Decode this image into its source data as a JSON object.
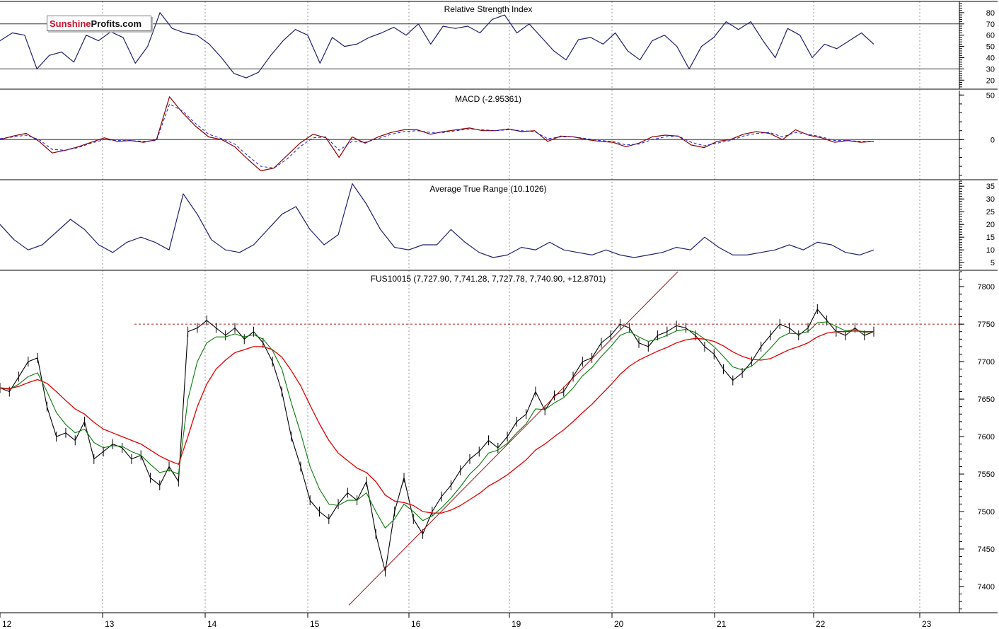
{
  "logo": {
    "part1": "Sunshine",
    "part2": "Profits.com"
  },
  "colors": {
    "rsi": "#1f1f6e",
    "macd": "#8b0000",
    "signal": "#1a1acc",
    "atr": "#1f1f6e",
    "price": "#000000",
    "ma_short": "#0a7a0a",
    "ma_long": "#dd0000",
    "trend": "#a01010",
    "level": "#b22222",
    "grid": "#9a9a9a"
  },
  "x_axis": {
    "labels": [
      "12",
      "13",
      "14",
      "15",
      "16",
      "19",
      "20",
      "21",
      "22",
      "23"
    ]
  },
  "chart_data": [
    {
      "type": "line",
      "title": "Relative Strength Index",
      "ylim": [
        12,
        90
      ],
      "yticks": [
        20,
        30,
        40,
        50,
        60,
        70,
        80
      ],
      "reference_lines": [
        30,
        70
      ],
      "series": [
        {
          "values": [
            55,
            62,
            60,
            30,
            42,
            45,
            36,
            60,
            55,
            63,
            58,
            35,
            50,
            80,
            66,
            62,
            60,
            52,
            40,
            26,
            22,
            27,
            42,
            55,
            65,
            60,
            35,
            58,
            50,
            52,
            58,
            62,
            67,
            60,
            70,
            52,
            68,
            66,
            68,
            62,
            74,
            78,
            62,
            70,
            58,
            46,
            38,
            56,
            58,
            52,
            62,
            46,
            38,
            55,
            60,
            50,
            30,
            50,
            58,
            72,
            65,
            72,
            55,
            40,
            66,
            60,
            40,
            52,
            48,
            55,
            62,
            52
          ]
        }
      ]
    },
    {
      "type": "line",
      "title": "MACD (-2.95361)",
      "ylim": [
        -45,
        55
      ],
      "yticks": [
        0,
        50
      ],
      "reference_lines": [
        0
      ],
      "series": [
        {
          "values": [
            0,
            4,
            7,
            -2,
            -15,
            -12,
            -8,
            -3,
            2,
            -2,
            -1,
            -3,
            0,
            48,
            30,
            15,
            3,
            0,
            -8,
            -22,
            -35,
            -32,
            -18,
            -4,
            6,
            2,
            -20,
            3,
            -4,
            3,
            8,
            11,
            11,
            6,
            9,
            11,
            13,
            10,
            10,
            12,
            9,
            10,
            -2,
            4,
            3,
            0,
            -2,
            -3,
            -8,
            -4,
            3,
            5,
            4,
            -6,
            -9,
            -2,
            0,
            6,
            9,
            7,
            0,
            11,
            5,
            2,
            -3,
            -1,
            -3,
            -2
          ]
        },
        {
          "values": [
            1,
            3,
            5,
            0,
            -11,
            -12,
            -9,
            -4,
            0,
            -1,
            -1,
            -2,
            -1,
            40,
            32,
            18,
            6,
            1,
            -5,
            -18,
            -30,
            -32,
            -22,
            -8,
            2,
            3,
            -12,
            -2,
            -3,
            1,
            6,
            9,
            10,
            8,
            8,
            10,
            12,
            11,
            10,
            11,
            10,
            9,
            1,
            3,
            3,
            1,
            -1,
            -2,
            -6,
            -5,
            0,
            3,
            4,
            -3,
            -7,
            -4,
            -1,
            4,
            7,
            8,
            3,
            8,
            6,
            3,
            -1,
            -1,
            -2,
            -2
          ]
        }
      ]
    },
    {
      "type": "line",
      "title": "Average True Range (10.1026)",
      "ylim": [
        2,
        37
      ],
      "yticks": [
        5,
        10,
        15,
        20,
        25,
        30,
        35
      ],
      "series": [
        {
          "values": [
            20,
            14,
            10,
            12,
            17,
            22,
            18,
            12,
            9,
            13,
            15,
            13,
            10,
            32,
            24,
            14,
            10,
            9,
            12,
            18,
            24,
            27,
            18,
            12,
            16,
            36,
            28,
            18,
            11,
            10,
            12,
            12,
            18,
            13,
            9,
            7,
            8,
            11,
            10,
            13,
            10,
            9,
            8,
            10,
            8,
            7,
            8,
            9,
            11,
            10,
            15,
            11,
            8,
            8,
            9,
            10,
            12,
            10,
            13,
            12,
            9,
            8,
            10
          ]
        }
      ]
    },
    {
      "type": "line",
      "title": "FUS10015 (7,727.90, 7,741.28, 7,727.78, 7,740.90, +12.8701)",
      "ylim": [
        7365,
        7820
      ],
      "yticks": [
        7400,
        7450,
        7500,
        7550,
        7600,
        7650,
        7700,
        7750,
        7800
      ],
      "reference_lines": [
        7750
      ],
      "series": [
        {
          "values": [
            7665,
            7660,
            7680,
            7700,
            7705,
            7640,
            7600,
            7605,
            7595,
            7620,
            7570,
            7580,
            7590,
            7585,
            7570,
            7575,
            7545,
            7535,
            7560,
            7540,
            7740,
            7745,
            7755,
            7745,
            7735,
            7745,
            7730,
            7740,
            7725,
            7700,
            7660,
            7600,
            7560,
            7515,
            7500,
            7490,
            7510,
            7525,
            7515,
            7540,
            7470,
            7420,
            7500,
            7545,
            7490,
            7470,
            7500,
            7520,
            7535,
            7555,
            7570,
            7580,
            7595,
            7585,
            7600,
            7620,
            7630,
            7660,
            7635,
            7655,
            7660,
            7680,
            7700,
            7705,
            7725,
            7735,
            7750,
            7745,
            7725,
            7720,
            7735,
            7740,
            7748,
            7745,
            7735,
            7720,
            7710,
            7690,
            7675,
            7685,
            7700,
            7720,
            7735,
            7750,
            7745,
            7735,
            7745,
            7770,
            7755,
            7740,
            7735,
            7745,
            7735,
            7740
          ]
        },
        {
          "values": [
            7665,
            7663,
            7670,
            7680,
            7685,
            7660,
            7632,
            7616,
            7605,
            7610,
            7592,
            7585,
            7588,
            7587,
            7580,
            7575,
            7563,
            7552,
            7555,
            7550,
            7650,
            7700,
            7725,
            7733,
            7733,
            7737,
            7733,
            7736,
            7730,
            7715,
            7690,
            7645,
            7605,
            7560,
            7530,
            7510,
            7508,
            7515,
            7515,
            7525,
            7500,
            7478,
            7490,
            7510,
            7500,
            7488,
            7494,
            7505,
            7518,
            7533,
            7550,
            7562,
            7578,
            7582,
            7591,
            7605,
            7617,
            7637,
            7636,
            7645,
            7652,
            7665,
            7681,
            7692,
            7707,
            7720,
            7735,
            7740,
            7733,
            7727,
            7730,
            7735,
            7741,
            7743,
            7739,
            7730,
            7720,
            7707,
            7693,
            7689,
            7694,
            7705,
            7718,
            7732,
            7738,
            7737,
            7740,
            7752,
            7753,
            7747,
            7741,
            7743,
            7739,
            7740
          ]
        },
        {
          "values": [
            7665,
            7664,
            7667,
            7672,
            7676,
            7671,
            7660,
            7648,
            7637,
            7630,
            7619,
            7610,
            7605,
            7600,
            7595,
            7590,
            7582,
            7574,
            7568,
            7563,
            7600,
            7640,
            7670,
            7690,
            7702,
            7712,
            7716,
            7720,
            7720,
            7716,
            7706,
            7688,
            7668,
            7642,
            7617,
            7595,
            7578,
            7568,
            7558,
            7552,
            7540,
            7522,
            7514,
            7512,
            7508,
            7500,
            7498,
            7498,
            7502,
            7508,
            7516,
            7524,
            7534,
            7541,
            7549,
            7559,
            7569,
            7582,
            7590,
            7600,
            7609,
            7620,
            7632,
            7643,
            7656,
            7669,
            7683,
            7694,
            7702,
            7708,
            7714,
            7719,
            7725,
            7729,
            7731,
            7730,
            7727,
            7721,
            7713,
            7707,
            7703,
            7702,
            7704,
            7710,
            7716,
            7720,
            7725,
            7733,
            7738,
            7740,
            7740,
            7741,
            7740,
            7740
          ]
        }
      ]
    }
  ]
}
